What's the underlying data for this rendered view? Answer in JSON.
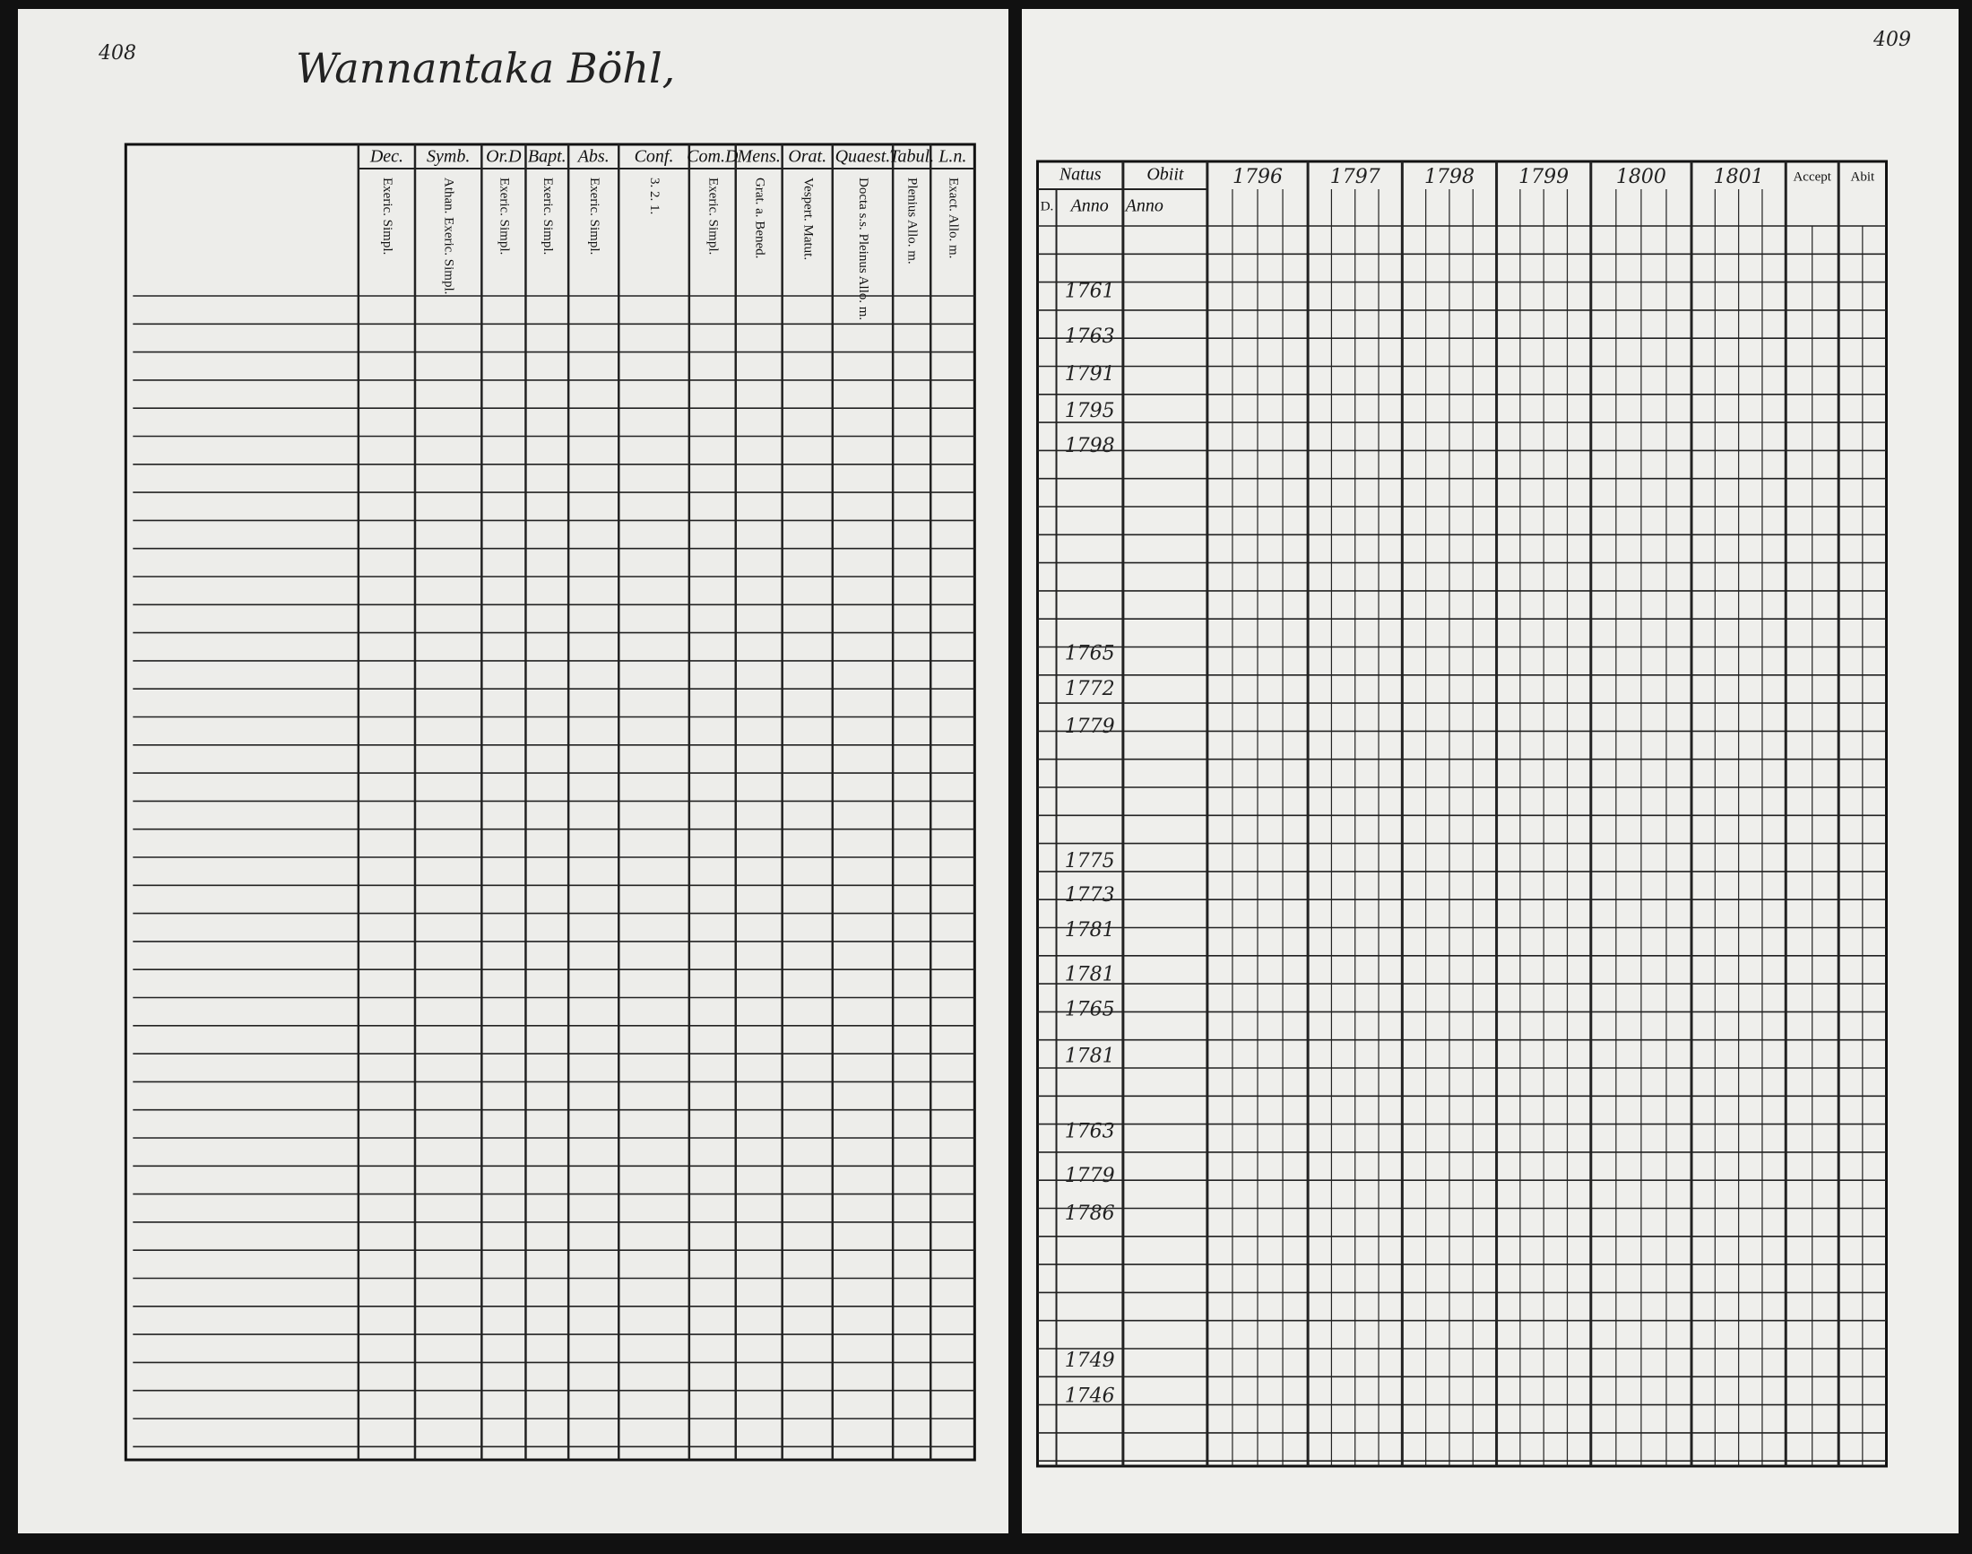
{
  "header": {
    "title": "Wannantaka Böhl,",
    "page_left": "408",
    "page_right": "409"
  },
  "left_table": {
    "columns": [
      {
        "label": "Dec.",
        "sub": "Exeric. Simpl."
      },
      {
        "label": "Symb.",
        "sub": "Athan. Exeric. Simpl."
      },
      {
        "label": "Or.D",
        "sub": "Exeric. Simpl."
      },
      {
        "label": "Bapt.",
        "sub": "Exeric. Simpl."
      },
      {
        "label": "Abs.",
        "sub": "Exeric. Simpl."
      },
      {
        "label": "Conf.",
        "sub": "3. 2. 1."
      },
      {
        "label": "Com.D",
        "sub": "Exeric. Simpl."
      },
      {
        "label": "Mens.",
        "sub": "Grat. a. Bened."
      },
      {
        "label": "Orat.",
        "sub": "Vespert. Matut."
      },
      {
        "label": "Quaest.",
        "sub": "Docta s.s. Pleinus Allo. m."
      },
      {
        "label": "Tabul.",
        "sub": "Plenius Allo. m."
      },
      {
        "label": "L.n.",
        "sub": "Exact. Allo. m."
      }
    ]
  },
  "right_table": {
    "natus": "Natus",
    "natus_day": "D.",
    "natus_year": "Anno",
    "obiit": "Obiit",
    "obiit_year": "Anno",
    "years": [
      "1796",
      "1797",
      "1798",
      "1799",
      "1800",
      "1801"
    ],
    "accept": "Accept",
    "abit": "Abit",
    "birth_years": [
      "1761",
      "1763",
      "1791",
      "1795",
      "1798",
      "1765",
      "1772",
      "1779",
      "1775",
      "1773",
      "1781",
      "1781",
      "1765",
      "1781",
      "1763",
      "1779",
      "1786",
      "1749",
      "1746"
    ]
  }
}
